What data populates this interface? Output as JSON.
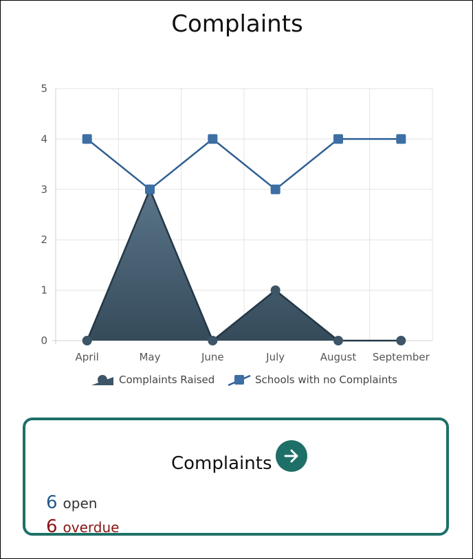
{
  "page": {
    "title": "Complaints"
  },
  "chart_data": {
    "type": "line",
    "categories": [
      "April",
      "May",
      "June",
      "July",
      "August",
      "September"
    ],
    "ylim": [
      0,
      5
    ],
    "yticks": [
      0,
      1,
      2,
      3,
      4,
      5
    ],
    "grid": true,
    "legend_position": "bottom",
    "series": [
      {
        "name": "Complaints Raised",
        "render": "area",
        "marker": "circle",
        "color": "#3d5566",
        "values": [
          0,
          3,
          0,
          1,
          0,
          0
        ]
      },
      {
        "name": "Schools with no Complaints",
        "render": "line",
        "marker": "square",
        "color": "#2f5f93",
        "values": [
          4,
          3,
          4,
          3,
          4,
          4
        ]
      }
    ]
  },
  "card": {
    "title": "Complaints",
    "arrow_icon": "arrow-right-icon",
    "accent": "#1e6f68",
    "open_count": "6",
    "open_label": "open",
    "overdue_count": "6",
    "overdue_label": "overdue"
  }
}
